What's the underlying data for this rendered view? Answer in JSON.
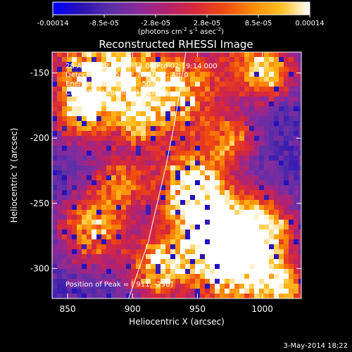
{
  "chart_data": {
    "type": "heatmap",
    "title": "Reconstructed RHESSI Image",
    "xlabel": "Heliocentric X (arcsec)",
    "ylabel": "Heliocentric Y (arcsec)",
    "xlim": [
      838,
      1030
    ],
    "ylim": [
      -323,
      -134
    ],
    "x_ticks": [
      850,
      900,
      950,
      1000
    ],
    "y_ticks": [
      -300,
      -250,
      -200,
      -150
    ],
    "x_tick_labels": [
      "850",
      "900",
      "950",
      "1000"
    ],
    "y_tick_labels": [
      "-300",
      "-250",
      "-200",
      "-150"
    ],
    "colorbar": {
      "range": [
        -0.00014,
        0.00014
      ],
      "tick_labels": [
        "-0.00014",
        "-8.5e-05",
        "-2.8e-05",
        "2.8e-05",
        "8.5e-05",
        "0.00014"
      ],
      "unit_label": "(photons cm-2 s-1 asec-2)",
      "colors": [
        "#0000ff",
        "#2a12b4",
        "#5a2fa8",
        "#8a2a9a",
        "#b3226e",
        "#d8283a",
        "#ef4a10",
        "#fa8a08",
        "#ffc020",
        "#ffffff"
      ]
    },
    "annotations": [
      "28-Apr-2012 02:13:14.000 to 02:19:14.000",
      "Detectors: 3F 5F 6F 7F 8F 9F; Att 0",
      "Energy Range: 25.0 - 50.0 keV",
      "Clean    Total counts: 9.565e03"
    ],
    "peak_label": "Position of Peak = [ 911, -296]",
    "footer_date": "3-May-2014 18:22",
    "limb_curve": [
      [
        897,
        -323
      ],
      [
        905,
        -300
      ],
      [
        912,
        -280
      ],
      [
        919,
        -250
      ],
      [
        926,
        -220
      ],
      [
        932,
        -190
      ],
      [
        937,
        -160
      ],
      [
        941,
        -134
      ]
    ]
  }
}
